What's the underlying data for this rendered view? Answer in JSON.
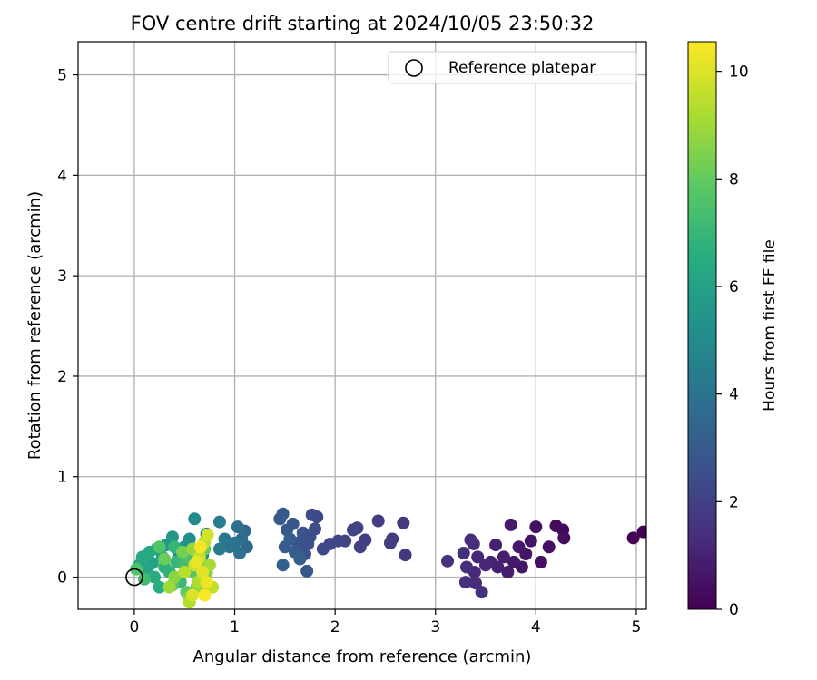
{
  "chart_data": {
    "type": "scatter",
    "title": "FOV centre drift starting at 2024/10/05 23:50:32",
    "xlabel": "Angular distance from reference (arcmin)",
    "ylabel": "Rotation from reference (arcmin)",
    "xlim": [
      -0.56,
      5.1
    ],
    "ylim": [
      -0.32,
      5.33
    ],
    "xticks": [
      0,
      1,
      2,
      3,
      4,
      5
    ],
    "yticks": [
      0,
      1,
      2,
      3,
      4,
      5
    ],
    "grid": true,
    "legend": {
      "placement": "top-right",
      "entries": [
        "Reference platepar"
      ]
    },
    "reference_point": {
      "x": 0,
      "y": 0,
      "label": "Reference platepar"
    },
    "colorbar": {
      "label": "Hours from first FF file",
      "range": [
        0,
        10.55
      ],
      "ticks": [
        0,
        2,
        4,
        6,
        8,
        10
      ],
      "colormap": "viridis"
    },
    "series": [
      {
        "points": [
          {
            "x": 5.07,
            "y": 0.45,
            "c": 0.0
          },
          {
            "x": 4.97,
            "y": 0.39,
            "c": 0.1
          },
          {
            "x": 4.27,
            "y": 0.47,
            "c": 0.25
          },
          {
            "x": 4.2,
            "y": 0.51,
            "c": 0.3
          },
          {
            "x": 4.28,
            "y": 0.39,
            "c": 0.35
          },
          {
            "x": 4.13,
            "y": 0.3,
            "c": 0.4
          },
          {
            "x": 4.05,
            "y": 0.15,
            "c": 0.45
          },
          {
            "x": 4.0,
            "y": 0.5,
            "c": 0.5
          },
          {
            "x": 3.95,
            "y": 0.36,
            "c": 0.55
          },
          {
            "x": 3.9,
            "y": 0.23,
            "c": 0.6
          },
          {
            "x": 3.86,
            "y": 0.1,
            "c": 0.65
          },
          {
            "x": 3.83,
            "y": 0.3,
            "c": 0.7
          },
          {
            "x": 3.78,
            "y": 0.15,
            "c": 0.75
          },
          {
            "x": 3.75,
            "y": 0.52,
            "c": 0.8
          },
          {
            "x": 3.72,
            "y": 0.05,
            "c": 0.85
          },
          {
            "x": 3.68,
            "y": 0.2,
            "c": 0.9
          },
          {
            "x": 3.62,
            "y": 0.1,
            "c": 0.95
          },
          {
            "x": 3.6,
            "y": 0.32,
            "c": 1.0
          },
          {
            "x": 3.55,
            "y": 0.15,
            "c": 1.05
          },
          {
            "x": 3.5,
            "y": 0.12,
            "c": 1.1
          },
          {
            "x": 3.42,
            "y": 0.2,
            "c": 1.15
          },
          {
            "x": 3.39,
            "y": 0.05,
            "c": 1.2
          },
          {
            "x": 3.4,
            "y": -0.06,
            "c": 1.25
          },
          {
            "x": 3.38,
            "y": 0.33,
            "c": 1.3
          },
          {
            "x": 3.35,
            "y": 0.37,
            "c": 1.33
          },
          {
            "x": 3.31,
            "y": 0.1,
            "c": 1.36
          },
          {
            "x": 3.28,
            "y": 0.24,
            "c": 1.4
          },
          {
            "x": 3.3,
            "y": -0.05,
            "c": 1.43
          },
          {
            "x": 3.12,
            "y": 0.16,
            "c": 1.46
          },
          {
            "x": 3.46,
            "y": -0.15,
            "c": 1.5
          },
          {
            "x": 2.68,
            "y": 0.54,
            "c": 1.7
          },
          {
            "x": 2.7,
            "y": 0.22,
            "c": 1.75
          },
          {
            "x": 2.57,
            "y": 0.38,
            "c": 1.8
          },
          {
            "x": 2.55,
            "y": 0.34,
            "c": 1.85
          },
          {
            "x": 2.43,
            "y": 0.56,
            "c": 1.9
          },
          {
            "x": 2.3,
            "y": 0.37,
            "c": 1.95
          },
          {
            "x": 2.25,
            "y": 0.3,
            "c": 2.0
          },
          {
            "x": 2.22,
            "y": 0.49,
            "c": 2.05
          },
          {
            "x": 2.18,
            "y": 0.47,
            "c": 2.1
          },
          {
            "x": 2.1,
            "y": 0.36,
            "c": 2.15
          },
          {
            "x": 2.03,
            "y": 0.36,
            "c": 2.2
          },
          {
            "x": 1.95,
            "y": 0.33,
            "c": 2.25
          },
          {
            "x": 1.88,
            "y": 0.28,
            "c": 2.3
          },
          {
            "x": 1.82,
            "y": 0.6,
            "c": 2.35
          },
          {
            "x": 1.77,
            "y": 0.62,
            "c": 2.4
          },
          {
            "x": 1.8,
            "y": 0.48,
            "c": 2.45
          },
          {
            "x": 1.75,
            "y": 0.4,
            "c": 2.5
          },
          {
            "x": 1.73,
            "y": 0.33,
            "c": 2.55
          },
          {
            "x": 1.7,
            "y": 0.23,
            "c": 2.6
          },
          {
            "x": 1.68,
            "y": 0.44,
            "c": 2.65
          },
          {
            "x": 1.65,
            "y": 0.35,
            "c": 2.7
          },
          {
            "x": 1.62,
            "y": 0.28,
            "c": 2.75
          },
          {
            "x": 1.72,
            "y": 0.06,
            "c": 2.8
          },
          {
            "x": 1.58,
            "y": 0.53,
            "c": 2.85
          },
          {
            "x": 1.52,
            "y": 0.47,
            "c": 2.9
          },
          {
            "x": 1.48,
            "y": 0.63,
            "c": 2.95
          },
          {
            "x": 1.45,
            "y": 0.58,
            "c": 3.0
          },
          {
            "x": 1.5,
            "y": 0.3,
            "c": 3.05
          },
          {
            "x": 1.55,
            "y": 0.38,
            "c": 3.1
          },
          {
            "x": 1.6,
            "y": 0.25,
            "c": 3.15
          },
          {
            "x": 1.48,
            "y": 0.12,
            "c": 3.2
          },
          {
            "x": 1.65,
            "y": 0.18,
            "c": 3.25
          },
          {
            "x": 1.12,
            "y": 0.3,
            "c": 3.5
          },
          {
            "x": 1.1,
            "y": 0.46,
            "c": 3.6
          },
          {
            "x": 1.07,
            "y": 0.38,
            "c": 3.7
          },
          {
            "x": 1.03,
            "y": 0.5,
            "c": 3.8
          },
          {
            "x": 1.05,
            "y": 0.24,
            "c": 3.9
          },
          {
            "x": 1.0,
            "y": 0.34,
            "c": 4.0
          },
          {
            "x": 0.95,
            "y": 0.3,
            "c": 4.1
          },
          {
            "x": 0.9,
            "y": 0.38,
            "c": 4.2
          },
          {
            "x": 0.85,
            "y": 0.28,
            "c": 4.3
          },
          {
            "x": 0.85,
            "y": 0.55,
            "c": 4.4
          },
          {
            "x": 0.72,
            "y": 0.43,
            "c": 4.6
          },
          {
            "x": 0.68,
            "y": 0.22,
            "c": 4.8
          },
          {
            "x": 0.6,
            "y": 0.58,
            "c": 5.0
          },
          {
            "x": 0.55,
            "y": 0.38,
            "c": 5.2
          },
          {
            "x": 0.5,
            "y": 0.3,
            "c": 5.4
          },
          {
            "x": 0.45,
            "y": 0.22,
            "c": 5.5
          },
          {
            "x": 0.38,
            "y": 0.4,
            "c": 5.6
          },
          {
            "x": 0.32,
            "y": 0.32,
            "c": 5.7
          },
          {
            "x": 0.28,
            "y": 0.2,
            "c": 5.8
          },
          {
            "x": 0.22,
            "y": 0.28,
            "c": 5.9
          },
          {
            "x": 0.18,
            "y": 0.14,
            "c": 6.0
          },
          {
            "x": 0.12,
            "y": 0.08,
            "c": 6.1
          },
          {
            "x": 0.05,
            "y": 0.12,
            "c": 6.2
          },
          {
            "x": 0.08,
            "y": 0.2,
            "c": 6.3
          },
          {
            "x": 0.15,
            "y": 0.25,
            "c": 6.4
          },
          {
            "x": 0.2,
            "y": 0.0,
            "c": 6.5
          },
          {
            "x": 0.25,
            "y": -0.1,
            "c": 6.6
          },
          {
            "x": 0.3,
            "y": 0.1,
            "c": 6.7
          },
          {
            "x": 0.35,
            "y": 0.05,
            "c": 6.8
          },
          {
            "x": 0.4,
            "y": 0.3,
            "c": 6.9
          },
          {
            "x": 0.42,
            "y": 0.15,
            "c": 7.0
          },
          {
            "x": 0.46,
            "y": -0.05,
            "c": 7.1
          },
          {
            "x": 0.1,
            "y": -0.02,
            "c": 7.2
          },
          {
            "x": 0.5,
            "y": 0.12,
            "c": 7.3
          },
          {
            "x": 0.55,
            "y": 0.2,
            "c": 7.4
          },
          {
            "x": 0.02,
            "y": 0.08,
            "c": 7.5
          },
          {
            "x": 0.25,
            "y": 0.3,
            "c": 7.6
          },
          {
            "x": 0.6,
            "y": 0.05,
            "c": 7.7
          },
          {
            "x": 0.38,
            "y": -0.08,
            "c": 7.8
          },
          {
            "x": 0.52,
            "y": -0.15,
            "c": 7.9
          },
          {
            "x": 0.65,
            "y": 0.15,
            "c": 8.0
          },
          {
            "x": 0.3,
            "y": 0.18,
            "c": 8.1
          },
          {
            "x": 0.7,
            "y": 0.28,
            "c": 8.2
          },
          {
            "x": 0.48,
            "y": 0.25,
            "c": 8.3
          },
          {
            "x": 0.62,
            "y": -0.1,
            "c": 8.4
          },
          {
            "x": 0.55,
            "y": -0.2,
            "c": 8.5
          },
          {
            "x": 0.72,
            "y": 0.05,
            "c": 8.6
          },
          {
            "x": 0.4,
            "y": 0.0,
            "c": 8.7
          },
          {
            "x": 0.68,
            "y": -0.15,
            "c": 8.8
          },
          {
            "x": 0.58,
            "y": 0.28,
            "c": 8.9
          },
          {
            "x": 0.35,
            "y": -0.1,
            "c": 9.0
          },
          {
            "x": 0.75,
            "y": 0.12,
            "c": 9.1
          },
          {
            "x": 0.63,
            "y": -0.05,
            "c": 9.2
          },
          {
            "x": 0.55,
            "y": -0.25,
            "c": 9.3
          },
          {
            "x": 0.5,
            "y": 0.05,
            "c": 9.4
          },
          {
            "x": 0.7,
            "y": 0.35,
            "c": 9.5
          },
          {
            "x": 0.78,
            "y": -0.1,
            "c": 9.6
          },
          {
            "x": 0.65,
            "y": 0.2,
            "c": 9.7
          },
          {
            "x": 0.6,
            "y": 0.12,
            "c": 9.8
          },
          {
            "x": 0.73,
            "y": 0.42,
            "c": 9.9
          },
          {
            "x": 0.58,
            "y": -0.18,
            "c": 10.0
          },
          {
            "x": 0.68,
            "y": 0.05,
            "c": 10.1
          },
          {
            "x": 0.62,
            "y": 0.15,
            "c": 10.2
          },
          {
            "x": 0.72,
            "y": -0.05,
            "c": 10.3
          },
          {
            "x": 0.66,
            "y": 0.3,
            "c": 10.4
          },
          {
            "x": 0.7,
            "y": -0.18,
            "c": 10.5
          }
        ]
      }
    ]
  }
}
